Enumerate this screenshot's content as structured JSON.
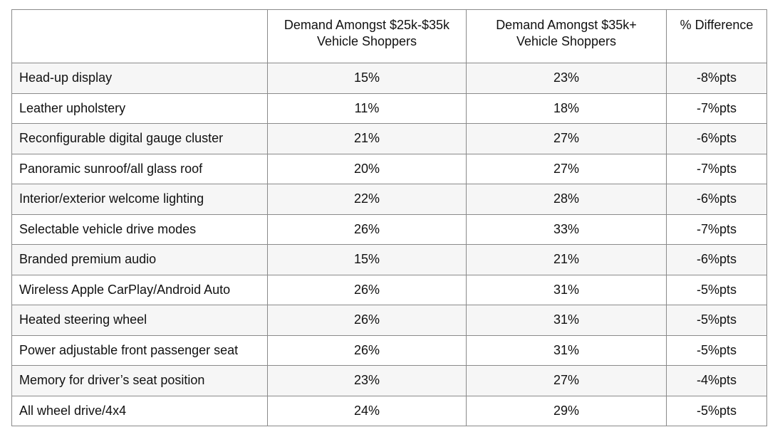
{
  "chart_data": {
    "type": "table",
    "columns": [
      "",
      "Demand Amongst $25k-$35k Vehicle Shoppers",
      "Demand Amongst $35k+ Vehicle Shoppers",
      "% Difference"
    ],
    "header_lines": [
      [
        ""
      ],
      [
        "Demand Amongst $25k-$35k",
        "Vehicle Shoppers"
      ],
      [
        "Demand Amongst $35k+",
        "Vehicle Shoppers"
      ],
      [
        "% Difference"
      ]
    ],
    "rows": [
      [
        "Head-up display",
        "15%",
        "23%",
        "-8%pts"
      ],
      [
        "Leather upholstery",
        "11%",
        "18%",
        "-7%pts"
      ],
      [
        "Reconfigurable digital gauge cluster",
        "21%",
        "27%",
        "-6%pts"
      ],
      [
        "Panoramic sunroof/all glass roof",
        "20%",
        "27%",
        "-7%pts"
      ],
      [
        "Interior/exterior welcome lighting",
        "22%",
        "28%",
        "-6%pts"
      ],
      [
        "Selectable vehicle drive modes",
        "26%",
        "33%",
        "-7%pts"
      ],
      [
        "Branded premium audio",
        "15%",
        "21%",
        "-6%pts"
      ],
      [
        "Wireless Apple CarPlay/Android Auto",
        "26%",
        "31%",
        "-5%pts"
      ],
      [
        "Heated steering wheel",
        "26%",
        "31%",
        "-5%pts"
      ],
      [
        "Power adjustable front passenger seat",
        "26%",
        "31%",
        "-5%pts"
      ],
      [
        "Memory for driver’s seat position",
        "23%",
        "27%",
        "-4%pts"
      ],
      [
        "All wheel drive/4x4",
        "24%",
        "29%",
        "-5%pts"
      ]
    ]
  },
  "colors": {
    "border": "#8a8a8a",
    "row_shade": "#f6f6f6",
    "text": "#111111"
  }
}
